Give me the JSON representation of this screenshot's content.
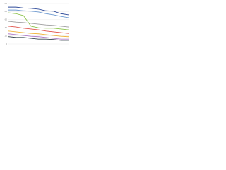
{
  "chart_data": {
    "type": "line",
    "categories": [
      null,
      null,
      null,
      null,
      null,
      null,
      null,
      null,
      null
    ],
    "series": [
      {
        "color": "#2f4b9a",
        "values": [
          91,
          91,
          89,
          88,
          86,
          82,
          81,
          75,
          72
        ]
      },
      {
        "color": "#6f9bd1",
        "values": [
          84,
          84,
          82,
          81,
          79,
          75,
          72,
          68,
          65
        ]
      },
      {
        "color": "#8bc34a",
        "values": [
          77,
          75,
          70,
          44,
          40,
          39,
          39,
          37,
          35
        ]
      },
      {
        "color": "#9e9e9e",
        "values": [
          56,
          54,
          53,
          51,
          49,
          47,
          46,
          44,
          42
        ]
      },
      {
        "color": "#e0524a",
        "values": [
          44,
          42,
          39,
          37,
          35,
          32,
          30,
          28,
          26
        ]
      },
      {
        "color": "#f0b43c",
        "values": [
          32,
          30,
          28,
          26,
          25,
          23,
          21,
          19,
          18
        ]
      },
      {
        "color": "#b07cc6",
        "values": [
          25,
          23,
          21,
          19,
          18,
          16,
          14,
          12,
          12
        ]
      },
      {
        "color": "#37474f",
        "values": [
          18,
          16,
          16,
          14,
          12,
          12,
          11,
          9,
          9
        ]
      }
    ],
    "ylim": [
      0,
      100
    ],
    "yticks": [
      0,
      20,
      40,
      60,
      80,
      100
    ],
    "grid": true
  }
}
